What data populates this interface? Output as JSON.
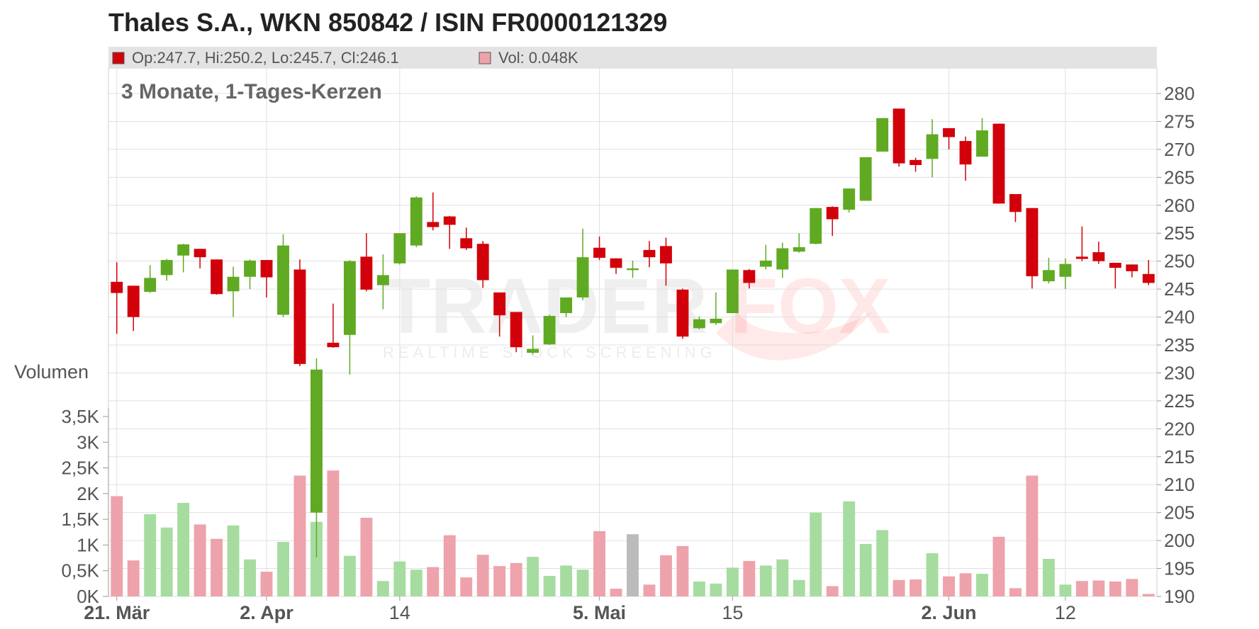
{
  "header": {
    "title": "Thales S.A., WKN 850842 / ISIN FR0000121329",
    "info_candle": "Op:247.7, Hi:250.2, Lo:245.7, Cl:246.1",
    "info_volume": "Vol: 0.048K",
    "subtitle": "3 Monate, 1-Tages-Kerzen",
    "volume_label": "Volumen"
  },
  "watermark": {
    "brand_left": "TRADER",
    "brand_right": "FOX",
    "tagline": "REALTIME STOCK SCREENING"
  },
  "colors": {
    "up": "#60aa23",
    "down": "#d2000a",
    "vol_up": "#a6dca0",
    "vol_down": "#eea2ab",
    "vol_neutral": "#bbbbbb",
    "grid": "#e0e0e0",
    "text": "#555555",
    "title": "#222222",
    "infobar": "#e3e3e3"
  },
  "chart_data": {
    "type": "candlestick",
    "price_axis": {
      "min": 190,
      "max": 280,
      "step": 5,
      "ticks": [
        "190",
        "195",
        "200",
        "205",
        "210",
        "215",
        "220",
        "225",
        "230",
        "235",
        "240",
        "245",
        "250",
        "255",
        "260",
        "265",
        "270",
        "275",
        "280"
      ]
    },
    "volume_axis": {
      "min": 0,
      "max": 3500,
      "ticks": [
        {
          "v": 0,
          "label": "0K"
        },
        {
          "v": 500,
          "label": "0,5K"
        },
        {
          "v": 1000,
          "label": "1K"
        },
        {
          "v": 1500,
          "label": "1,5K"
        },
        {
          "v": 2000,
          "label": "2K"
        },
        {
          "v": 2500,
          "label": "2,5K"
        },
        {
          "v": 3000,
          "label": "3K"
        },
        {
          "v": 3500,
          "label": "3,5K"
        }
      ]
    },
    "x_labels": [
      {
        "i": 0,
        "label": "21. Mär",
        "bold": true
      },
      {
        "i": 9,
        "label": "2. Apr",
        "bold": true
      },
      {
        "i": 17,
        "label": "14",
        "bold": false
      },
      {
        "i": 29,
        "label": "5. Mai",
        "bold": true
      },
      {
        "i": 37,
        "label": "15",
        "bold": false
      },
      {
        "i": 50,
        "label": "2. Jun",
        "bold": true
      },
      {
        "i": 57,
        "label": "12",
        "bold": false
      }
    ],
    "candles": [
      {
        "o": 246.3,
        "h": 249.8,
        "l": 237.0,
        "c": 244.3,
        "v": 1950
      },
      {
        "o": 245.6,
        "h": 245.6,
        "l": 237.5,
        "c": 240.0,
        "v": 700
      },
      {
        "o": 244.5,
        "h": 249.3,
        "l": 244.3,
        "c": 247.0,
        "v": 1600
      },
      {
        "o": 247.5,
        "h": 250.4,
        "l": 246.5,
        "c": 250.2,
        "v": 1340
      },
      {
        "o": 251.0,
        "h": 253.1,
        "l": 248.0,
        "c": 253.0,
        "v": 1820
      },
      {
        "o": 252.2,
        "h": 252.2,
        "l": 248.7,
        "c": 250.7,
        "v": 1400
      },
      {
        "o": 250.3,
        "h": 250.3,
        "l": 244.0,
        "c": 244.1,
        "v": 1120
      },
      {
        "o": 244.6,
        "h": 249.0,
        "l": 240.0,
        "c": 247.2,
        "v": 1380
      },
      {
        "o": 247.2,
        "h": 250.3,
        "l": 245.0,
        "c": 250.1,
        "v": 720
      },
      {
        "o": 250.2,
        "h": 250.2,
        "l": 243.5,
        "c": 247.1,
        "v": 480
      },
      {
        "o": 240.4,
        "h": 254.8,
        "l": 240.0,
        "c": 252.8,
        "v": 1060
      },
      {
        "o": 248.5,
        "h": 250.3,
        "l": 231.2,
        "c": 231.6,
        "v": 2350
      },
      {
        "o": 205.0,
        "h": 232.6,
        "l": 197.0,
        "c": 230.6,
        "v": 1450
      },
      {
        "o": 235.4,
        "h": 242.4,
        "l": 234.5,
        "c": 234.6,
        "v": 2450
      },
      {
        "o": 236.8,
        "h": 250.2,
        "l": 229.7,
        "c": 250.0,
        "v": 790
      },
      {
        "o": 250.8,
        "h": 255.0,
        "l": 244.6,
        "c": 244.9,
        "v": 1530
      },
      {
        "o": 245.7,
        "h": 251.2,
        "l": 241.4,
        "c": 247.5,
        "v": 300
      },
      {
        "o": 249.6,
        "h": 255.0,
        "l": 249.4,
        "c": 255.0,
        "v": 680
      },
      {
        "o": 252.8,
        "h": 261.6,
        "l": 252.5,
        "c": 261.4,
        "v": 520
      },
      {
        "o": 257.0,
        "h": 262.3,
        "l": 255.5,
        "c": 256.1,
        "v": 570
      },
      {
        "o": 258.0,
        "h": 258.1,
        "l": 252.2,
        "c": 256.5,
        "v": 1190
      },
      {
        "o": 254.1,
        "h": 256.0,
        "l": 252.0,
        "c": 252.3,
        "v": 370
      },
      {
        "o": 253.1,
        "h": 253.6,
        "l": 245.2,
        "c": 246.6,
        "v": 810
      },
      {
        "o": 244.4,
        "h": 244.4,
        "l": 236.5,
        "c": 240.3,
        "v": 590
      },
      {
        "o": 240.9,
        "h": 240.9,
        "l": 233.7,
        "c": 234.6,
        "v": 650
      },
      {
        "o": 233.6,
        "h": 236.7,
        "l": 233.3,
        "c": 234.3,
        "v": 770
      },
      {
        "o": 235.1,
        "h": 240.4,
        "l": 235.0,
        "c": 240.2,
        "v": 400
      },
      {
        "o": 240.7,
        "h": 243.5,
        "l": 240.0,
        "c": 243.5,
        "v": 600
      },
      {
        "o": 243.5,
        "h": 255.8,
        "l": 243.0,
        "c": 250.7,
        "v": 520
      },
      {
        "o": 252.4,
        "h": 254.4,
        "l": 250.2,
        "c": 250.6,
        "v": 1270
      },
      {
        "o": 250.5,
        "h": 250.5,
        "l": 247.7,
        "c": 248.8,
        "v": 150
      },
      {
        "o": 248.4,
        "h": 250.1,
        "l": 247.0,
        "c": 248.7,
        "v": 1210
      },
      {
        "o": 252.0,
        "h": 253.6,
        "l": 248.9,
        "c": 250.7,
        "v": 230
      },
      {
        "o": 252.7,
        "h": 254.2,
        "l": 245.6,
        "c": 249.6,
        "v": 800
      },
      {
        "o": 244.9,
        "h": 245.1,
        "l": 236.1,
        "c": 236.5,
        "v": 980
      },
      {
        "o": 238.0,
        "h": 240.1,
        "l": 237.8,
        "c": 239.6,
        "v": 290
      },
      {
        "o": 238.9,
        "h": 244.4,
        "l": 238.6,
        "c": 239.7,
        "v": 250
      },
      {
        "o": 240.7,
        "h": 248.5,
        "l": 240.7,
        "c": 248.5,
        "v": 560
      },
      {
        "o": 248.4,
        "h": 248.6,
        "l": 245.1,
        "c": 246.1,
        "v": 690
      },
      {
        "o": 249.0,
        "h": 252.9,
        "l": 248.5,
        "c": 250.1,
        "v": 600
      },
      {
        "o": 248.5,
        "h": 253.3,
        "l": 247.0,
        "c": 252.3,
        "v": 720
      },
      {
        "o": 251.7,
        "h": 255.0,
        "l": 251.5,
        "c": 252.5,
        "v": 320
      },
      {
        "o": 253.1,
        "h": 259.5,
        "l": 253.0,
        "c": 259.5,
        "v": 1630
      },
      {
        "o": 259.7,
        "h": 259.8,
        "l": 254.5,
        "c": 257.5,
        "v": 200
      },
      {
        "o": 259.2,
        "h": 263.0,
        "l": 258.7,
        "c": 263.0,
        "v": 1850
      },
      {
        "o": 260.8,
        "h": 268.6,
        "l": 260.8,
        "c": 268.6,
        "v": 1020
      },
      {
        "o": 269.6,
        "h": 275.6,
        "l": 269.6,
        "c": 275.6,
        "v": 1290
      },
      {
        "o": 277.3,
        "h": 277.3,
        "l": 266.9,
        "c": 267.5,
        "v": 320
      },
      {
        "o": 268.1,
        "h": 268.5,
        "l": 266.0,
        "c": 267.2,
        "v": 330
      },
      {
        "o": 268.3,
        "h": 275.4,
        "l": 265.0,
        "c": 272.7,
        "v": 840
      },
      {
        "o": 273.8,
        "h": 273.8,
        "l": 270.0,
        "c": 272.2,
        "v": 390
      },
      {
        "o": 271.5,
        "h": 272.3,
        "l": 264.4,
        "c": 267.3,
        "v": 450
      },
      {
        "o": 268.7,
        "h": 275.6,
        "l": 268.7,
        "c": 273.4,
        "v": 440
      },
      {
        "o": 274.6,
        "h": 274.6,
        "l": 260.3,
        "c": 260.3,
        "v": 1160
      },
      {
        "o": 262.0,
        "h": 262.0,
        "l": 257.0,
        "c": 258.8,
        "v": 160
      },
      {
        "o": 259.5,
        "h": 259.5,
        "l": 245.1,
        "c": 247.3,
        "v": 2350
      },
      {
        "o": 246.4,
        "h": 250.6,
        "l": 246.0,
        "c": 248.4,
        "v": 730
      },
      {
        "o": 247.2,
        "h": 250.5,
        "l": 245.0,
        "c": 249.5,
        "v": 230
      },
      {
        "o": 250.8,
        "h": 256.2,
        "l": 250.0,
        "c": 250.4,
        "v": 300
      },
      {
        "o": 251.6,
        "h": 253.5,
        "l": 249.5,
        "c": 250.0,
        "v": 310
      },
      {
        "o": 249.7,
        "h": 249.7,
        "l": 245.1,
        "c": 248.8,
        "v": 290
      },
      {
        "o": 249.4,
        "h": 249.4,
        "l": 247.1,
        "c": 248.2,
        "v": 340
      },
      {
        "o": 247.7,
        "h": 250.2,
        "l": 245.7,
        "c": 246.1,
        "v": 48
      }
    ],
    "neutral_volume_index": 31
  }
}
